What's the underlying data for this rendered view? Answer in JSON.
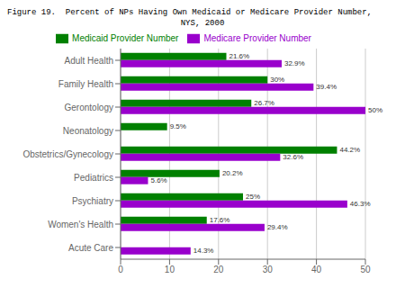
{
  "chart_data": {
    "type": "bar",
    "orientation": "horizontal",
    "title": "Figure 19.  Percent of NPs Having Own Medicaid or Medicare Provider Number,",
    "subtitle": "NYS, 2000",
    "categories": [
      "Adult Health",
      "Family Health",
      "Gerontology",
      "Neonatology",
      "Obstetrics/Gynecology",
      "Pediatrics",
      "Psychiatry",
      "Women's Health",
      "Acute Care"
    ],
    "series": [
      {
        "name": "Medicaid Provider Number",
        "color": "#008000",
        "values": [
          21.6,
          30.0,
          26.7,
          9.5,
          44.2,
          20.2,
          25.0,
          17.6,
          0.0
        ],
        "value_labels": [
          "21.6%",
          "30%",
          "26.7%",
          "9.5%",
          "44.2%",
          "20.2%",
          "25%",
          "17.6%",
          null
        ]
      },
      {
        "name": "Medicare Provider Number",
        "color": "#9900CC",
        "values": [
          32.9,
          39.4,
          50.0,
          0.0,
          32.6,
          5.6,
          46.3,
          29.4,
          14.3
        ],
        "value_labels": [
          "32.9%",
          "39.4%",
          "50%",
          null,
          "32.6%",
          "5.6%",
          "46.3%",
          "29.4%",
          "14.3%"
        ]
      }
    ],
    "xlim": [
      0,
      50
    ],
    "xticks": [
      0,
      10,
      20,
      30,
      40,
      50
    ],
    "grid": true,
    "legend": "top",
    "data_labels": true
  }
}
